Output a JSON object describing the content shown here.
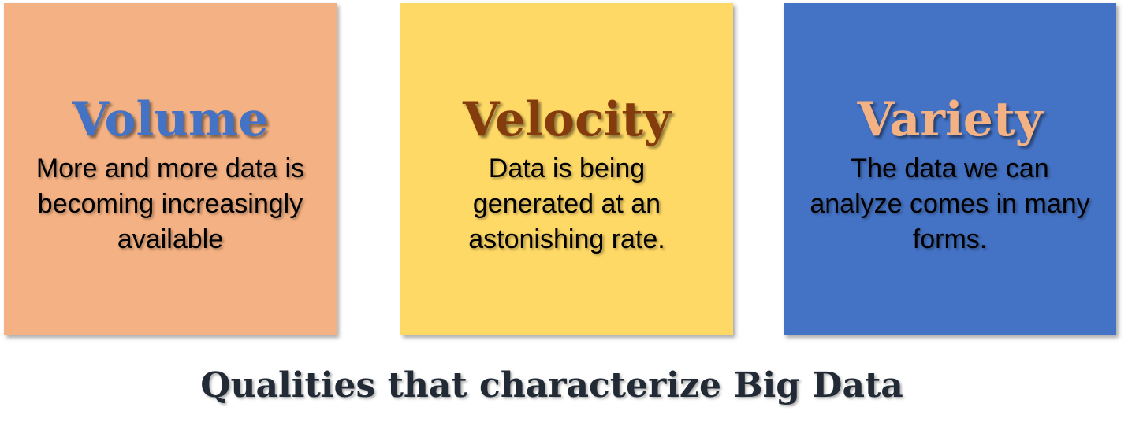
{
  "cards": [
    {
      "title": "Volume",
      "title_color": "#4472C4",
      "background": "#F4B183",
      "lines": [
        "More and more data is",
        "becoming increasingly",
        "available"
      ]
    },
    {
      "title": "Velocity",
      "title_color": "#843C0C",
      "background": "#FFD966",
      "lines": [
        "Data is being",
        "generated at an",
        "astonishing rate."
      ]
    },
    {
      "title": "Variety",
      "title_color": "#F4B183",
      "background": "#4472C4",
      "lines": [
        "The data we can",
        "analyze comes in many",
        "forms."
      ]
    }
  ],
  "caption": "Qualities that characterize Big Data"
}
